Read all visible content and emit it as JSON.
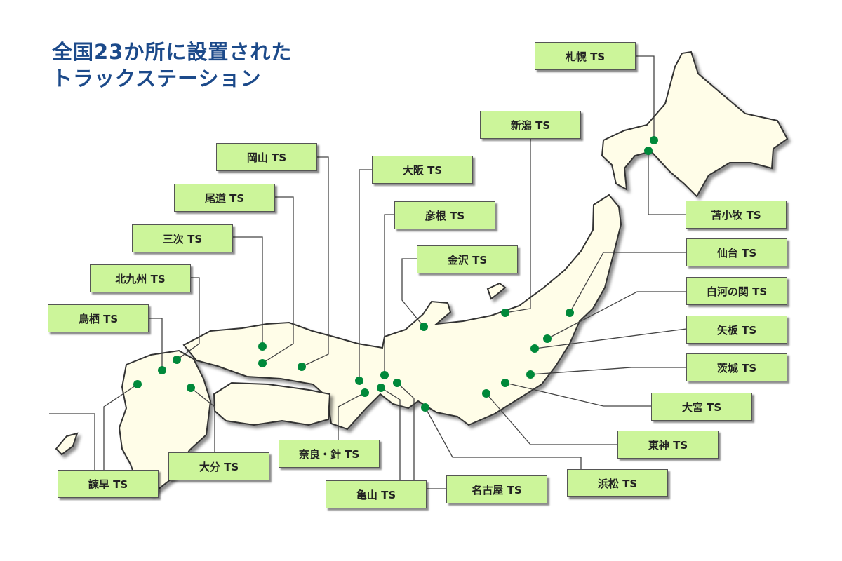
{
  "title": {
    "line1": "全国23か所に設置された",
    "line2": "トラックステーション"
  },
  "colors": {
    "title": "#1c4a8a",
    "label_bg": "#ccf59a",
    "land": "#fffde8",
    "marker": "#00893a"
  },
  "stations": {
    "sapporo": "札幌 TS",
    "tomakomai": "苫小牧 TS",
    "niigata": "新潟 TS",
    "okayama": "岡山 TS",
    "osaka": "大阪 TS",
    "onomichi": "尾道 TS",
    "hikone": "彦根 TS",
    "miyoshi": "三次 TS",
    "kanazawa": "金沢 TS",
    "kitakyushu": "北九州 TS",
    "tosu": "鳥栖 TS",
    "sendai": "仙台 TS",
    "shirakawa": "白河の関 TS",
    "yaita": "矢板 TS",
    "ibaraki": "茨城 TS",
    "omiya": "大宮 TS",
    "toshin": "東神 TS",
    "hamamatsu": "浜松 TS",
    "nagoya": "名古屋 TS",
    "kameyama": "亀山 TS",
    "nara_hari": "奈良・針 TS",
    "oita": "大分 TS",
    "isahaya": "諫早 TS"
  }
}
